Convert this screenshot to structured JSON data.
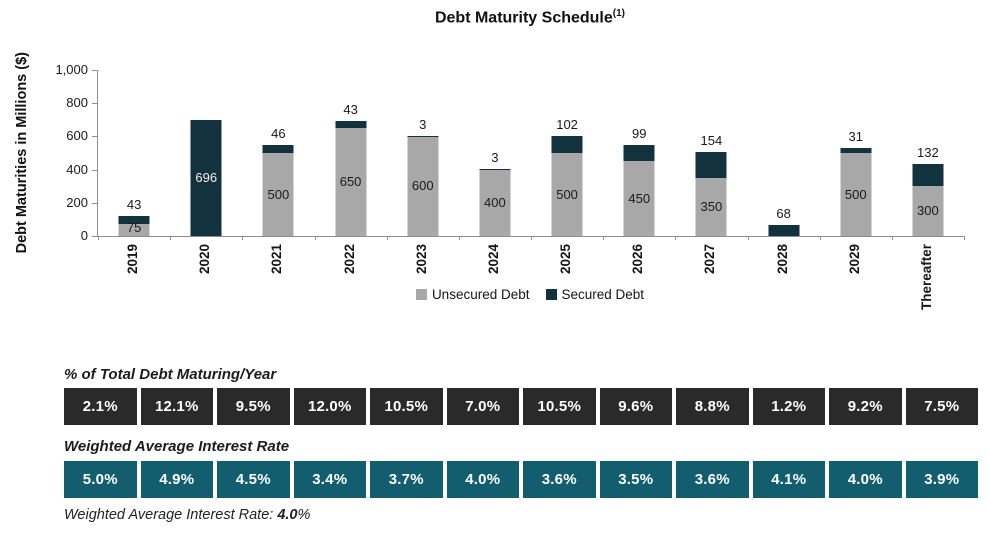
{
  "title": {
    "text": "Debt Maturity Schedule",
    "superscript": "(1)"
  },
  "colors": {
    "unsecured": "#a8a8a8",
    "secured": "#12323d",
    "axis": "#8e8e8e",
    "pct_table_bg": "#2b2a2b",
    "rate_table_bg": "#125e6f"
  },
  "chart_data": {
    "type": "bar",
    "stacked": true,
    "title": "Debt Maturity Schedule(1)",
    "ylabel": "Debt Maturities in Millions ($)",
    "xlabel": "",
    "ylim": [
      0,
      1000
    ],
    "yticks": [
      "1,000",
      "800",
      "600",
      "400",
      "200",
      "0"
    ],
    "grid": false,
    "legend_position": "bottom",
    "categories": [
      "2019",
      "2020",
      "2021",
      "2022",
      "2023",
      "2024",
      "2025",
      "2026",
      "2027",
      "2028",
      "2029",
      "Thereafter"
    ],
    "series": [
      {
        "name": "Unsecured Debt",
        "color": "#a8a8a8",
        "values": [
          75,
          0,
          500,
          650,
          600,
          400,
          500,
          450,
          350,
          0,
          500,
          300
        ]
      },
      {
        "name": "Secured Debt",
        "color": "#12323d",
        "values": [
          43,
          696,
          46,
          43,
          3,
          3,
          102,
          99,
          154,
          68,
          31,
          132
        ]
      }
    ],
    "secured_label_inside": [
      false,
      true,
      false,
      false,
      false,
      false,
      false,
      false,
      false,
      false,
      false,
      false
    ]
  },
  "tables": [
    {
      "heading": "% of Total Debt Maturing/Year",
      "bg": "#2b2a2b",
      "values": [
        "2.1%",
        "12.1%",
        "9.5%",
        "12.0%",
        "10.5%",
        "7.0%",
        "10.5%",
        "9.6%",
        "8.8%",
        "1.2%",
        "9.2%",
        "7.5%"
      ]
    },
    {
      "heading": "Weighted Average Interest Rate",
      "bg": "#125e6f",
      "values": [
        "5.0%",
        "4.9%",
        "4.5%",
        "3.4%",
        "3.7%",
        "4.0%",
        "3.6%",
        "3.5%",
        "3.6%",
        "4.1%",
        "4.0%",
        "3.9%"
      ]
    }
  ],
  "footer": {
    "prefix": "Weighted Average Interest Rate: ",
    "value": "4.0",
    "suffix": "%"
  }
}
